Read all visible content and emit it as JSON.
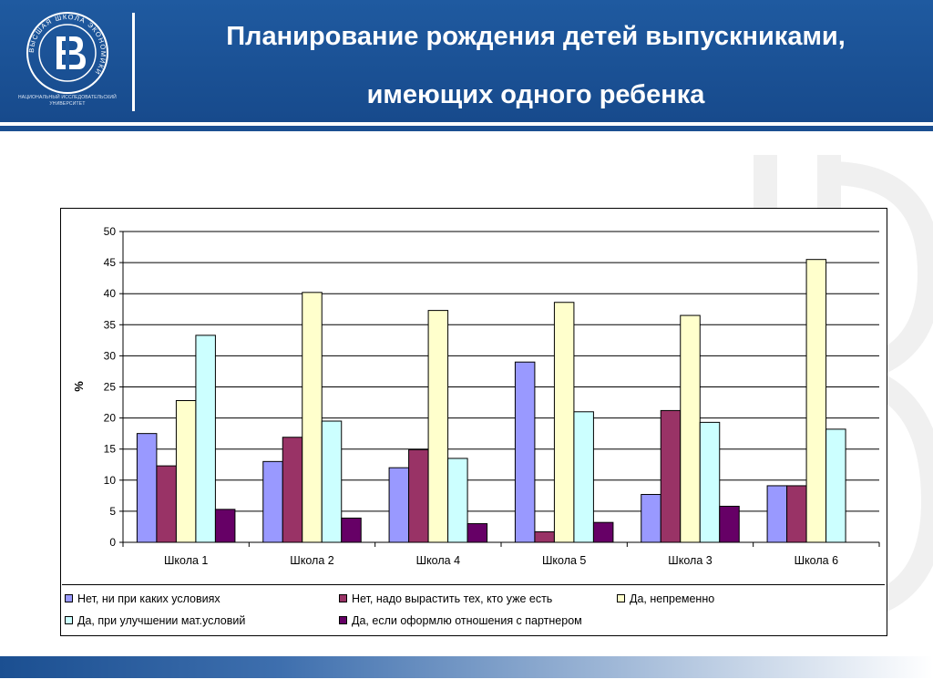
{
  "slide": {
    "title_line1": "Планирование рождения детей выпускниками,",
    "title_line2": "имеющих одного ребенка",
    "logo_caption": "НАЦИОНАЛЬНЫЙ ИССЛЕДОВАТЕЛЬСКИЙ УНИВЕРСИТЕТ",
    "logo_ring_text": "ВЫСШАЯ ШКОЛА ЭКОНОМИКИ",
    "header_color": "#1f5aa0"
  },
  "chart_data": {
    "type": "bar",
    "ylabel": "%",
    "xlabel": "",
    "ylim": [
      0,
      50
    ],
    "yticks": [
      0,
      5,
      10,
      15,
      20,
      25,
      30,
      35,
      40,
      45,
      50
    ],
    "grid": true,
    "legend_position": "bottom",
    "categories": [
      "Школа 1",
      "Школа 2",
      "Школа 4",
      "Школа 5",
      "Школа 3",
      "Школа 6"
    ],
    "series": [
      {
        "name": "Нет, ни при каких условиях",
        "color": "#9999ff",
        "values": [
          17.5,
          13,
          12,
          29,
          7.7,
          9.1
        ]
      },
      {
        "name": "Нет, надо вырастить тех, кто уже есть",
        "color": "#993366",
        "values": [
          12.3,
          16.9,
          14.9,
          1.7,
          21.2,
          9.1
        ]
      },
      {
        "name": "Да, непременно",
        "color": "#ffffcc",
        "values": [
          22.8,
          40.2,
          37.3,
          38.6,
          36.5,
          45.5
        ]
      },
      {
        "name": "Да, при улучшении мат.условий",
        "color": "#ccffff",
        "values": [
          33.3,
          19.5,
          13.5,
          21,
          19.3,
          18.2
        ]
      },
      {
        "name": "Да, если оформлю отношения с партнером",
        "color": "#660066",
        "values": [
          5.3,
          3.9,
          3,
          3.2,
          5.8,
          0
        ]
      }
    ]
  }
}
